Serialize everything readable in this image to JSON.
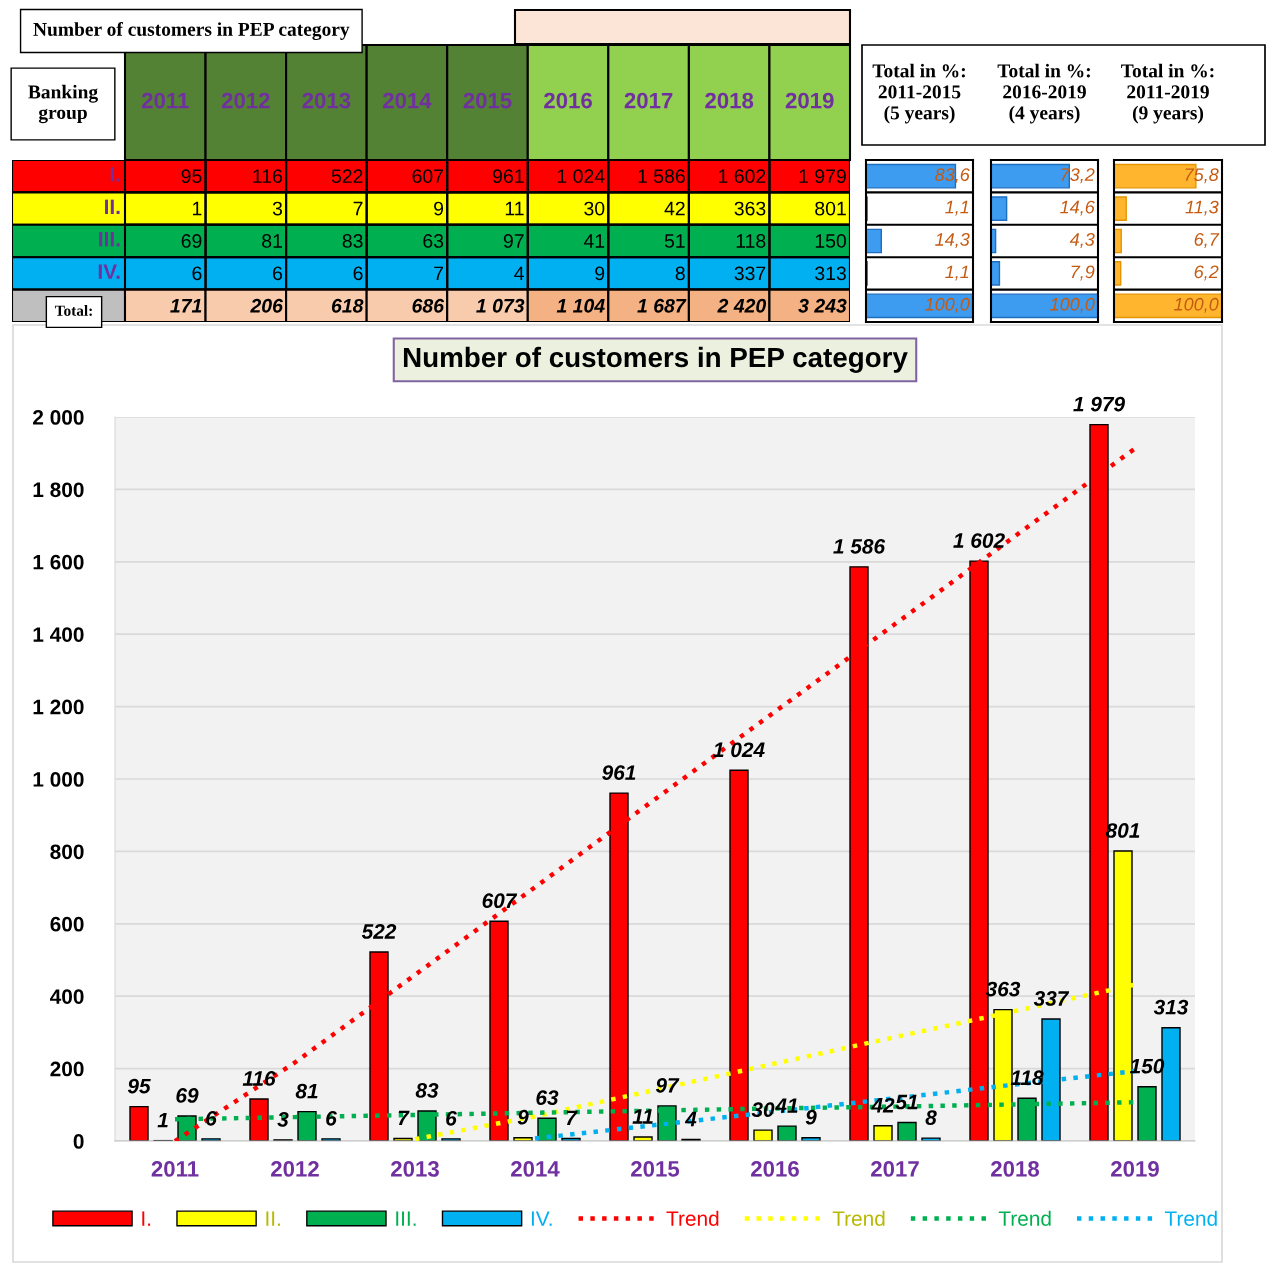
{
  "chart_data": [
    {
      "type": "bar",
      "orientation": "horizontal",
      "title": "Total in %:\n2011-2015\n(5 years)",
      "categories": [
        null,
        null,
        null,
        null,
        null
      ],
      "values": [
        83.6,
        1.1,
        14.3,
        1.1,
        100.0
      ],
      "value_labels": [
        "83,6",
        "1,1",
        "14,3",
        "1,1",
        "100,0"
      ],
      "color": "#3d9bf0",
      "xlim": [
        0,
        100
      ]
    },
    {
      "type": "bar",
      "orientation": "horizontal",
      "title": "Total in %:\n2016-2019\n(4 years)",
      "categories": [
        null,
        null,
        null,
        null,
        null
      ],
      "values": [
        73.2,
        14.6,
        4.3,
        7.9,
        100.0
      ],
      "value_labels": [
        "73,2",
        "14,6",
        "4,3",
        "7,9",
        "100,0"
      ],
      "color": "#3d9bf0",
      "xlim": [
        0,
        100
      ]
    },
    {
      "type": "bar",
      "orientation": "horizontal",
      "title": "Total in %:\n2011-2019\n(9 years)",
      "categories": [
        null,
        null,
        null,
        null,
        null
      ],
      "values": [
        75.8,
        11.3,
        6.7,
        6.2,
        100.0
      ],
      "value_labels": [
        "75,8",
        "11,3",
        "6,7",
        "6,2",
        "100,0"
      ],
      "color": "#ffb62e",
      "xlim": [
        0,
        100
      ]
    },
    {
      "type": "bar",
      "title": "Number of customers in PEP category",
      "categories": [
        "2011",
        "2012",
        "2013",
        "2014",
        "2015",
        "2016",
        "2017",
        "2018",
        "2019"
      ],
      "series": [
        {
          "name": "I.",
          "color": "#ff0000",
          "values": [
            95,
            116,
            522,
            607,
            961,
            1024,
            1586,
            1602,
            1979
          ],
          "value_labels": [
            "95",
            "116",
            "522",
            "607",
            "961",
            "1 024",
            "1 586",
            "1 602",
            "1 979"
          ]
        },
        {
          "name": "II.",
          "color": "#ffff00",
          "values": [
            1,
            3,
            7,
            9,
            11,
            30,
            42,
            363,
            801
          ],
          "value_labels": [
            "1",
            "3",
            "7",
            "9",
            "11",
            "30",
            "42",
            "363",
            "801"
          ]
        },
        {
          "name": "III.",
          "color": "#00b050",
          "values": [
            69,
            81,
            83,
            63,
            97,
            41,
            51,
            118,
            150
          ],
          "value_labels": [
            "69",
            "81",
            "83",
            "63",
            "97",
            "41",
            "51",
            "118",
            "150"
          ]
        },
        {
          "name": "IV.",
          "color": "#00b0f0",
          "values": [
            6,
            6,
            6,
            7,
            4,
            9,
            8,
            337,
            313
          ],
          "value_labels": [
            "6",
            "6",
            "6",
            "7",
            "4",
            "9",
            "8",
            "337",
            "313"
          ]
        },
        {
          "name": "Trend",
          "type": "line",
          "color": "#ff0000",
          "line_style": "dotted",
          "values": [
            0,
            217,
            459,
            701,
            944,
            1186,
            1428,
            1671,
            1913
          ]
        },
        {
          "name": "Trend",
          "type": "line",
          "color": "#ffff00",
          "line_style": "dotted",
          "values": [
            null,
            null,
            5,
            68,
            141,
            214,
            287,
            359,
            432
          ]
        },
        {
          "name": "Trend",
          "type": "line",
          "color": "#00b050",
          "line_style": "dotted",
          "values": [
            60,
            66,
            72,
            78,
            84,
            90,
            95,
            101,
            107
          ]
        },
        {
          "name": "Trend",
          "type": "line",
          "color": "#00b0f0",
          "line_style": "dotted",
          "values": [
            null,
            null,
            null,
            7,
            44,
            81,
            118,
            156,
            193
          ]
        }
      ],
      "ylim": [
        0,
        2000
      ],
      "yticks": [
        0,
        200,
        400,
        600,
        800,
        {
          "value": 1000,
          "label": "1 000"
        },
        {
          "value": 1200,
          "label": "1 200"
        },
        {
          "value": 1400,
          "label": "1 400"
        },
        {
          "value": 1600,
          "label": "1 600"
        },
        {
          "value": 1800,
          "label": "1 800"
        },
        {
          "value": 2000,
          "label": "2 000"
        }
      ],
      "annotations": [
        "Number of customers in PEP category",
        "Banking\ngroup",
        "Total:",
        "171",
        "206",
        "618",
        "686",
        "1 073",
        "1 104",
        "1 687",
        "2 420",
        "3 243"
      ],
      "grid": "y",
      "legend": "bottom"
    }
  ]
}
